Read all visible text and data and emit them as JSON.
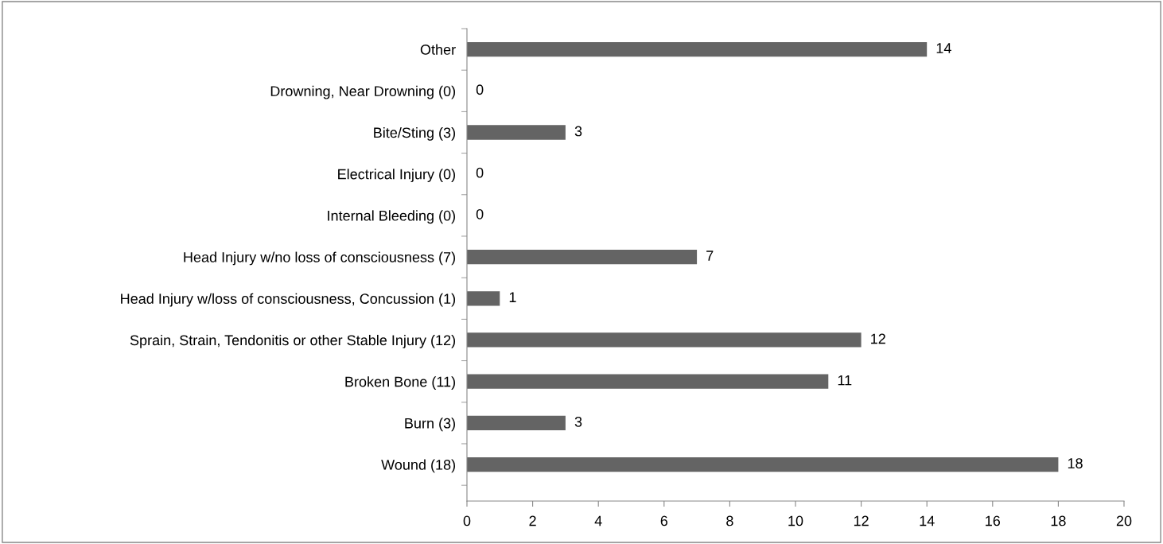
{
  "chart_data": {
    "type": "bar",
    "orientation": "horizontal",
    "categories": [
      "Other",
      "Drowning, Near Drowning (0)",
      "Bite/Sting (3)",
      "Electrical Injury (0)",
      "Internal Bleeding (0)",
      "Head Injury w/no loss of consciousness (7)",
      "Head Injury w/loss of consciousness, Concussion (1)",
      "Sprain, Strain, Tendonitis or other Stable Injury (12)",
      "Broken Bone (11)",
      "Burn (3)",
      "Wound (18)"
    ],
    "values": [
      14,
      0,
      3,
      0,
      0,
      7,
      1,
      12,
      11,
      3,
      18
    ],
    "color": "#646464",
    "xlim": [
      0,
      20
    ],
    "xticks": [
      0,
      2,
      4,
      6,
      8,
      10,
      12,
      14,
      16,
      18,
      20
    ],
    "grid": false,
    "legend": false,
    "data_labels": true
  }
}
